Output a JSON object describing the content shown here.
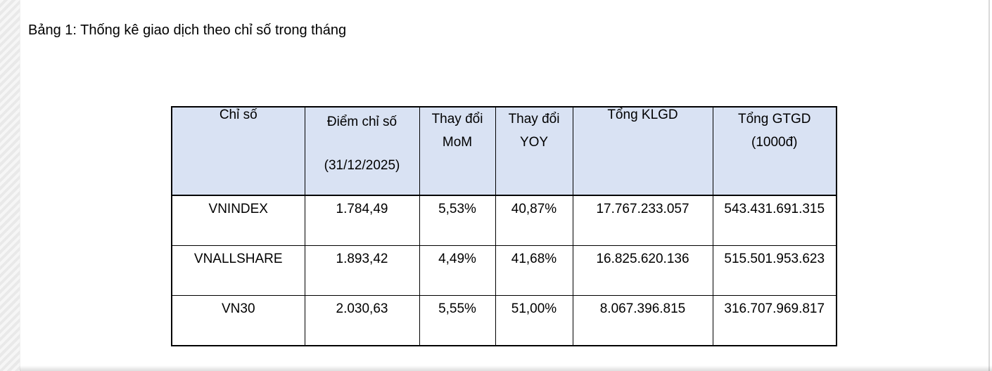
{
  "page": {
    "title": "Bảng 1: Thống kê giao dịch theo chỉ số trong tháng"
  },
  "colors": {
    "header_background": "#d9e2f3",
    "table_border": "#000000",
    "text": "#000000"
  },
  "table": {
    "columns": [
      {
        "lines": [
          "Chỉ số"
        ]
      },
      {
        "lines": [
          "Điểm chỉ số",
          "(31/12/2025)"
        ]
      },
      {
        "lines": [
          "Thay đổi",
          "MoM"
        ]
      },
      {
        "lines": [
          "Thay đổi",
          "YOY"
        ]
      },
      {
        "lines": [
          "Tổng KLGD"
        ]
      },
      {
        "lines": [
          "Tổng GTGD",
          "(1000đ)"
        ]
      }
    ],
    "rows": [
      {
        "cells": [
          "VNINDEX",
          "1.784,49",
          "5,53%",
          "40,87%",
          "17.767.233.057",
          "543.431.691.315"
        ]
      },
      {
        "cells": [
          "VNALLSHARE",
          "1.893,42",
          "4,49%",
          "41,68%",
          "16.825.620.136",
          "515.501.953.623"
        ]
      },
      {
        "cells": [
          "VN30",
          "2.030,63",
          "5,55%",
          "51,00%",
          "8.067.396.815",
          "316.707.969.817"
        ]
      }
    ]
  }
}
